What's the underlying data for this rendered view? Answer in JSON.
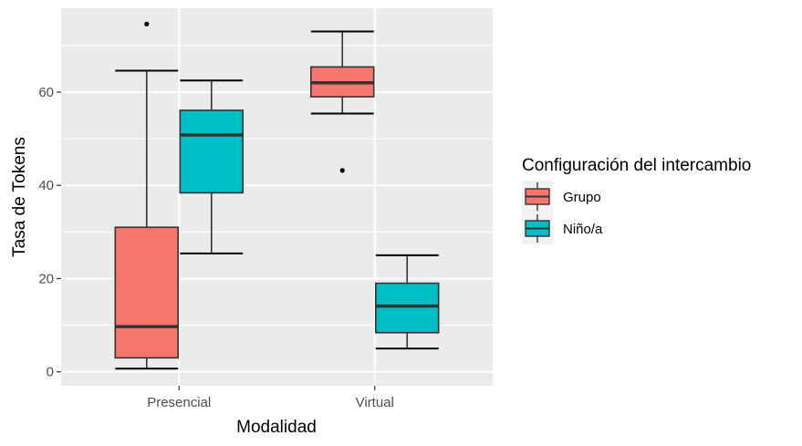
{
  "chart_data": {
    "type": "boxplot",
    "xlabel": "Modalidad",
    "ylabel": "Tasa de Tokens",
    "categories": [
      "Presencial",
      "Virtual"
    ],
    "yticks": [
      0,
      20,
      40,
      60
    ],
    "ylim": [
      -3,
      78
    ],
    "grid": true,
    "legend": {
      "title": "Configuración del intercambio",
      "position": "right",
      "entries": [
        "Grupo",
        "Niño/a"
      ]
    },
    "series": [
      {
        "name": "Grupo",
        "color": "#F8766D",
        "boxes": [
          {
            "category": "Presencial",
            "min": 0.7,
            "q1": 3.0,
            "median": 9.7,
            "q3": 31.0,
            "max": 64.6,
            "outliers": [
              74.6
            ]
          },
          {
            "category": "Virtual",
            "min": 55.4,
            "q1": 59.0,
            "median": 62.0,
            "q3": 65.4,
            "max": 73.0,
            "outliers": [
              43.2
            ]
          }
        ]
      },
      {
        "name": "Niño/a",
        "color": "#00BFC4",
        "boxes": [
          {
            "category": "Presencial",
            "min": 25.4,
            "q1": 38.4,
            "median": 50.8,
            "q3": 56.1,
            "max": 62.5,
            "outliers": []
          },
          {
            "category": "Virtual",
            "min": 5.0,
            "q1": 8.4,
            "median": 14.1,
            "q3": 19.0,
            "max": 25.0,
            "outliers": []
          }
        ]
      }
    ]
  }
}
